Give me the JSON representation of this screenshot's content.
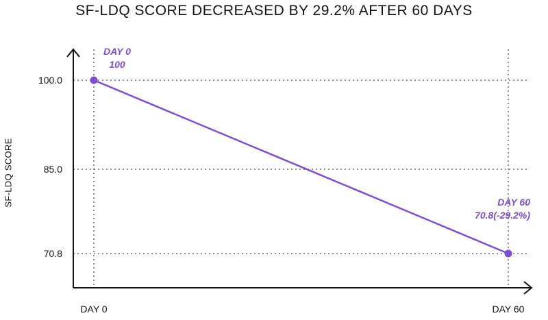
{
  "chart_data": {
    "type": "line",
    "title": "SF-LDQ SCORE DECREASED BY 29.2% AFTER 60 DAYS",
    "xlabel": "",
    "ylabel": "SF-LDQ SCORE",
    "categories": [
      "DAY 0",
      "DAY 60"
    ],
    "y_ticks": [
      "100.0",
      "85.0",
      "70.8"
    ],
    "y_tick_values": [
      100.0,
      85.0,
      70.8
    ],
    "series": [
      {
        "values": [
          100,
          70.8
        ]
      }
    ],
    "annotations": [
      {
        "lines": [
          "DAY 0",
          "100"
        ],
        "x": "DAY 0",
        "y": 100
      },
      {
        "lines": [
          "DAY 60",
          "70.8(-29.2%)"
        ],
        "x": "DAY 60",
        "y": 70.8
      }
    ],
    "grid": true,
    "colors": {
      "line": "#7b4fcf",
      "annotation": "#7b4fcf",
      "axis": "#111111",
      "grid": "#222222"
    }
  }
}
